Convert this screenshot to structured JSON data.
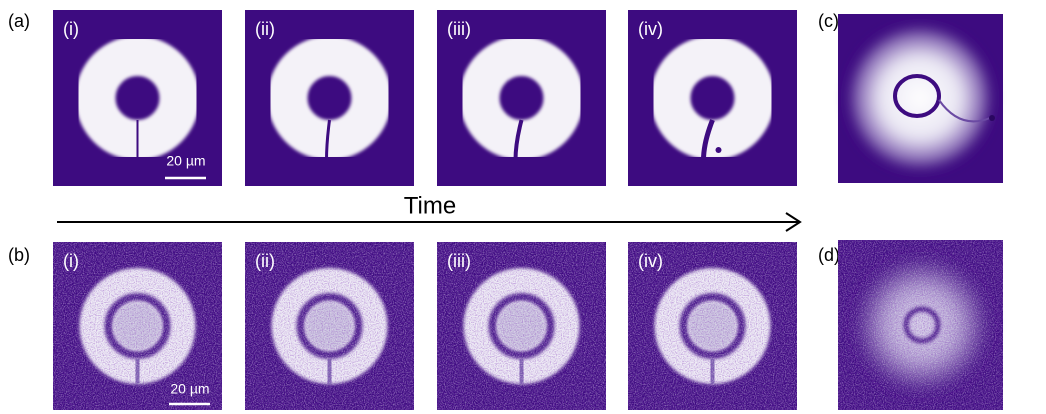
{
  "panels": {
    "a": {
      "label": "(a)",
      "images": [
        {
          "label": "(i)"
        },
        {
          "label": "(ii)"
        },
        {
          "label": "(iii)"
        },
        {
          "label": "(iv)"
        }
      ],
      "scale_bar": "20 µm"
    },
    "b": {
      "label": "(b)",
      "images": [
        {
          "label": "(i)"
        },
        {
          "label": "(ii)"
        },
        {
          "label": "(iii)"
        },
        {
          "label": "(iv)"
        }
      ],
      "scale_bar": "20 µm"
    },
    "c": {
      "label": "(c)"
    },
    "d": {
      "label": "(d)"
    }
  },
  "time_label": "Time"
}
